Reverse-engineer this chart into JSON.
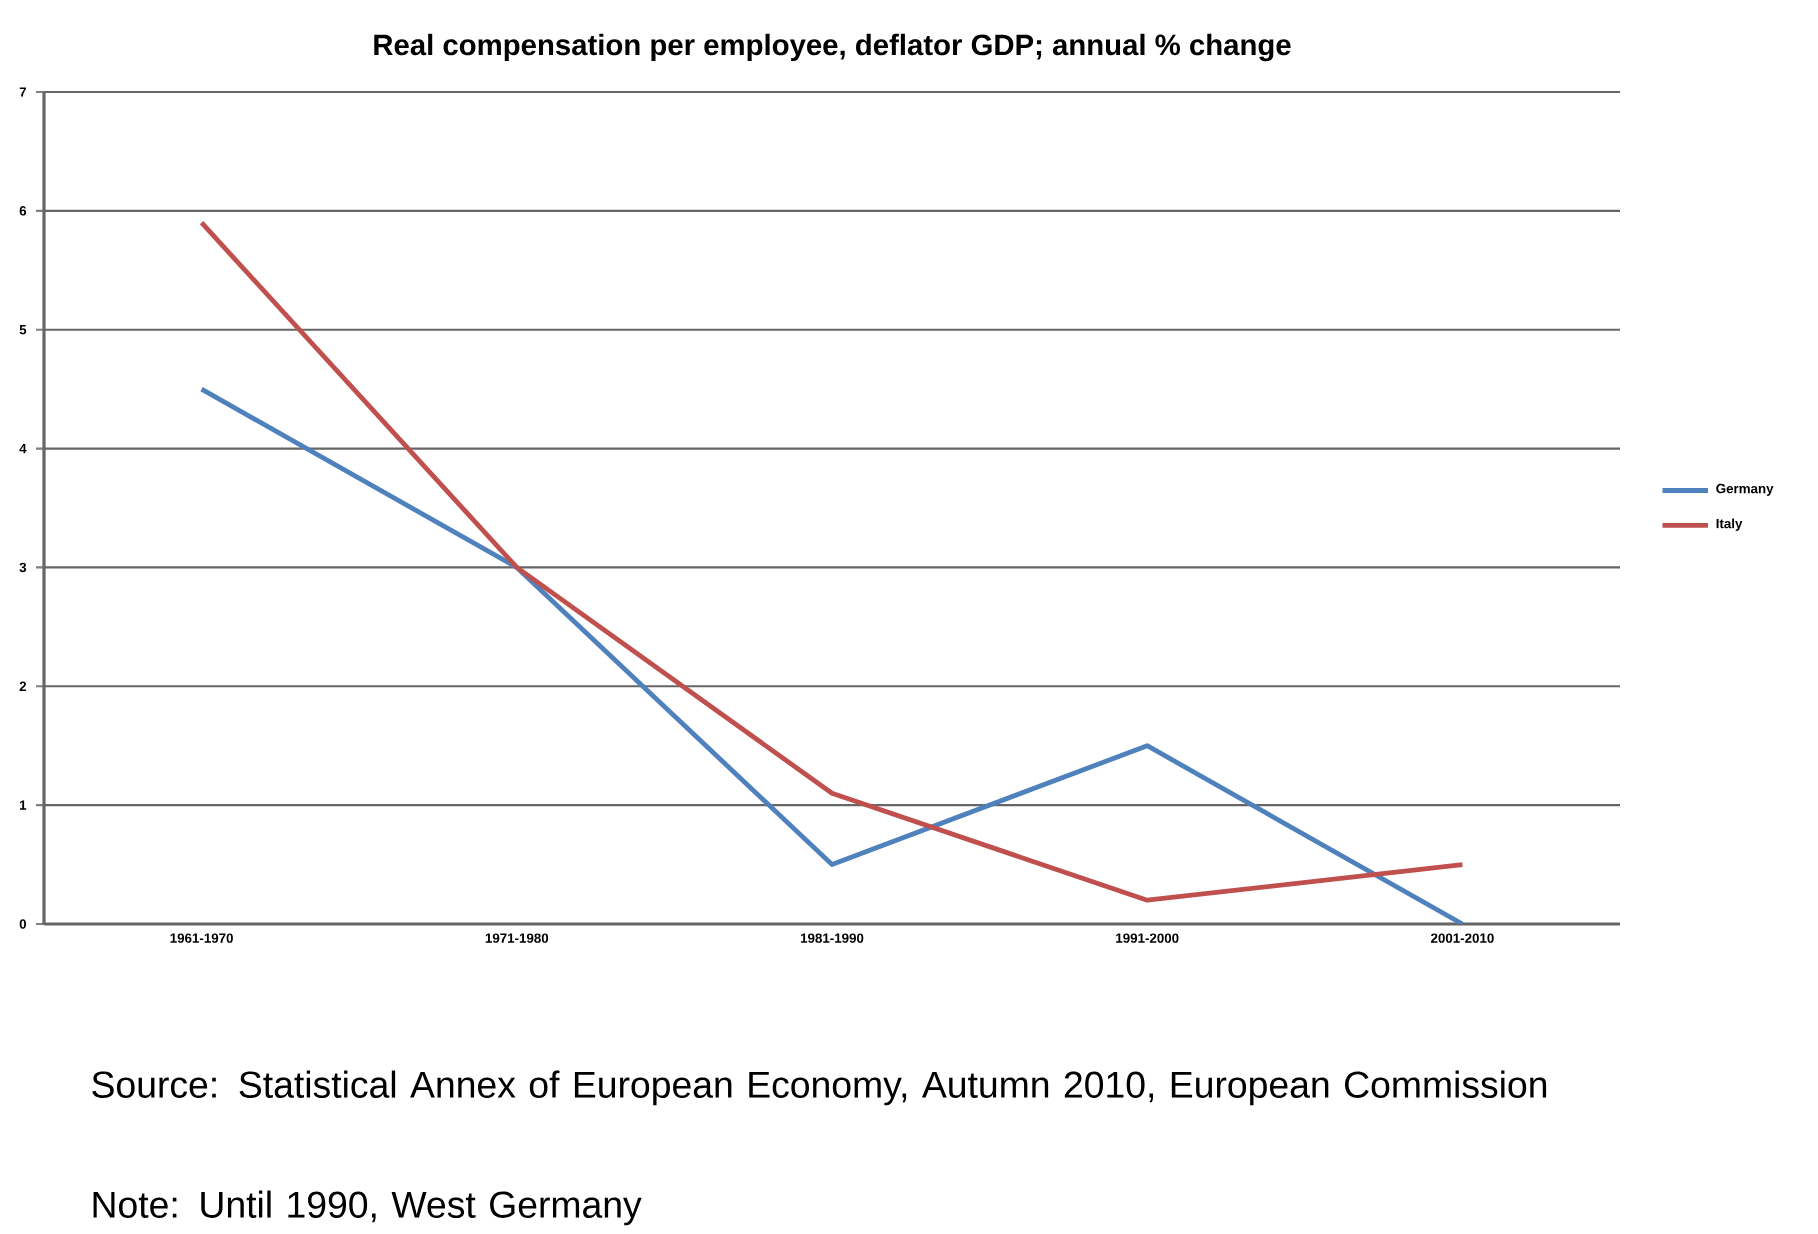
{
  "chart_data": {
    "type": "line",
    "title": "Real compensation  per employee, deflator GDP; annual % change",
    "categories": [
      "1961-1970",
      "1971-1980",
      "1981-1990",
      "1991-2000",
      "2001-2010"
    ],
    "series": [
      {
        "name": "Germany",
        "color": "#4f81bd",
        "values": [
          4.5,
          3.0,
          0.5,
          1.5,
          0.0
        ]
      },
      {
        "name": "Italy",
        "color": "#c0504d",
        "values": [
          5.9,
          3.0,
          1.1,
          0.2,
          0.5
        ]
      }
    ],
    "ylim": [
      0,
      7
    ],
    "yticks": [
      0,
      1,
      2,
      3,
      4,
      5,
      6,
      7
    ],
    "grid": "y",
    "legend": "right",
    "marker": "none",
    "line_style": "solid",
    "annotations": [
      "Source: Statistical Annex of European Economy, Autumn 2010, European Commission",
      "Note: Until 1990, West Germany"
    ]
  }
}
